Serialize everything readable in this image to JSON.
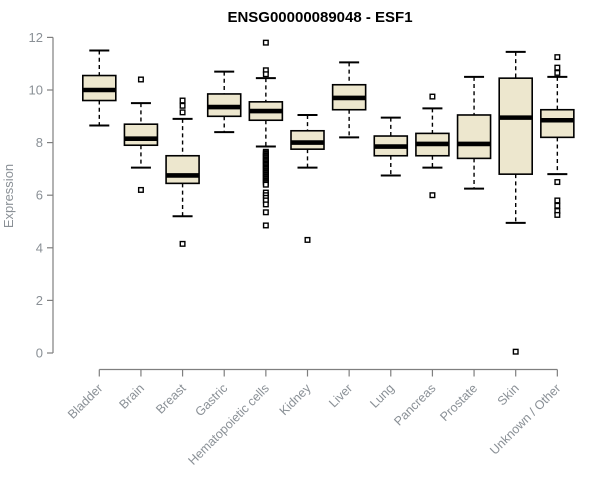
{
  "chart_data": {
    "type": "boxplot",
    "title": "ENSG00000089048 - ESF1",
    "ylabel": "Expression",
    "ylim": [
      0,
      12
    ],
    "yticks": [
      0,
      2,
      4,
      6,
      8,
      10,
      12
    ],
    "grid": false,
    "legend": "none",
    "categories": [
      "Bladder",
      "Brain",
      "Breast",
      "Gastric",
      "Hematopoietic cells",
      "Kidney",
      "Liver",
      "Lung",
      "Pancreas",
      "Prostate",
      "Skin",
      "Unknown / Other"
    ],
    "series": [
      {
        "name": "Bladder",
        "lo": 8.65,
        "q1": 9.6,
        "med": 10.0,
        "q3": 10.55,
        "hi": 11.5,
        "outliers": []
      },
      {
        "name": "Brain",
        "lo": 7.05,
        "q1": 7.9,
        "med": 8.15,
        "q3": 8.7,
        "hi": 9.5,
        "outliers": [
          10.4,
          6.2
        ]
      },
      {
        "name": "Breast",
        "lo": 5.2,
        "q1": 6.45,
        "med": 6.75,
        "q3": 7.5,
        "hi": 8.9,
        "outliers": [
          9.6,
          9.4,
          9.15,
          4.15
        ]
      },
      {
        "name": "Gastric",
        "lo": 8.4,
        "q1": 9.0,
        "med": 9.35,
        "q3": 9.85,
        "hi": 10.7,
        "outliers": []
      },
      {
        "name": "Hematopoietic cells",
        "lo": 7.85,
        "q1": 8.85,
        "med": 9.2,
        "q3": 9.55,
        "hi": 10.45,
        "outliers": [
          11.8,
          10.75,
          10.6,
          7.65,
          7.6,
          7.55,
          7.5,
          7.45,
          7.4,
          7.35,
          7.3,
          7.25,
          7.2,
          7.15,
          7.1,
          7.05,
          7.0,
          6.95,
          6.9,
          6.85,
          6.8,
          6.75,
          6.7,
          6.65,
          6.6,
          6.55,
          6.5,
          6.45,
          6.4,
          6.1,
          6.0,
          5.9,
          5.8,
          5.65,
          5.35,
          4.85
        ]
      },
      {
        "name": "Kidney",
        "lo": 7.05,
        "q1": 7.75,
        "med": 8.0,
        "q3": 8.45,
        "hi": 9.05,
        "outliers": [
          4.3
        ]
      },
      {
        "name": "Liver",
        "lo": 8.2,
        "q1": 9.25,
        "med": 9.7,
        "q3": 10.2,
        "hi": 11.05,
        "outliers": []
      },
      {
        "name": "Lung",
        "lo": 6.75,
        "q1": 7.5,
        "med": 7.85,
        "q3": 8.25,
        "hi": 8.95,
        "outliers": []
      },
      {
        "name": "Pancreas",
        "lo": 7.05,
        "q1": 7.5,
        "med": 7.95,
        "q3": 8.35,
        "hi": 9.3,
        "outliers": [
          9.75,
          6.0
        ]
      },
      {
        "name": "Prostate",
        "lo": 6.25,
        "q1": 7.4,
        "med": 7.95,
        "q3": 9.05,
        "hi": 10.5,
        "outliers": []
      },
      {
        "name": "Skin",
        "lo": 4.95,
        "q1": 6.8,
        "med": 8.95,
        "q3": 10.45,
        "hi": 11.45,
        "outliers": [
          0.05
        ]
      },
      {
        "name": "Unknown / Other",
        "lo": 6.8,
        "q1": 8.2,
        "med": 8.85,
        "q3": 9.25,
        "hi": 10.5,
        "outliers": [
          11.25,
          10.85,
          10.65,
          6.5,
          5.8,
          5.6,
          5.4,
          5.25
        ]
      }
    ],
    "colors": {
      "box_fill": "#EDE7CE",
      "box_stroke": "#000000",
      "median": "#000000",
      "whisker": "#000000",
      "outlier_stroke": "#000000",
      "outlier_fill": "#ffffff",
      "axis": "#7f7f7f",
      "tick_label": "#8a9096",
      "title": "#000000",
      "background": "#ffffff"
    }
  }
}
